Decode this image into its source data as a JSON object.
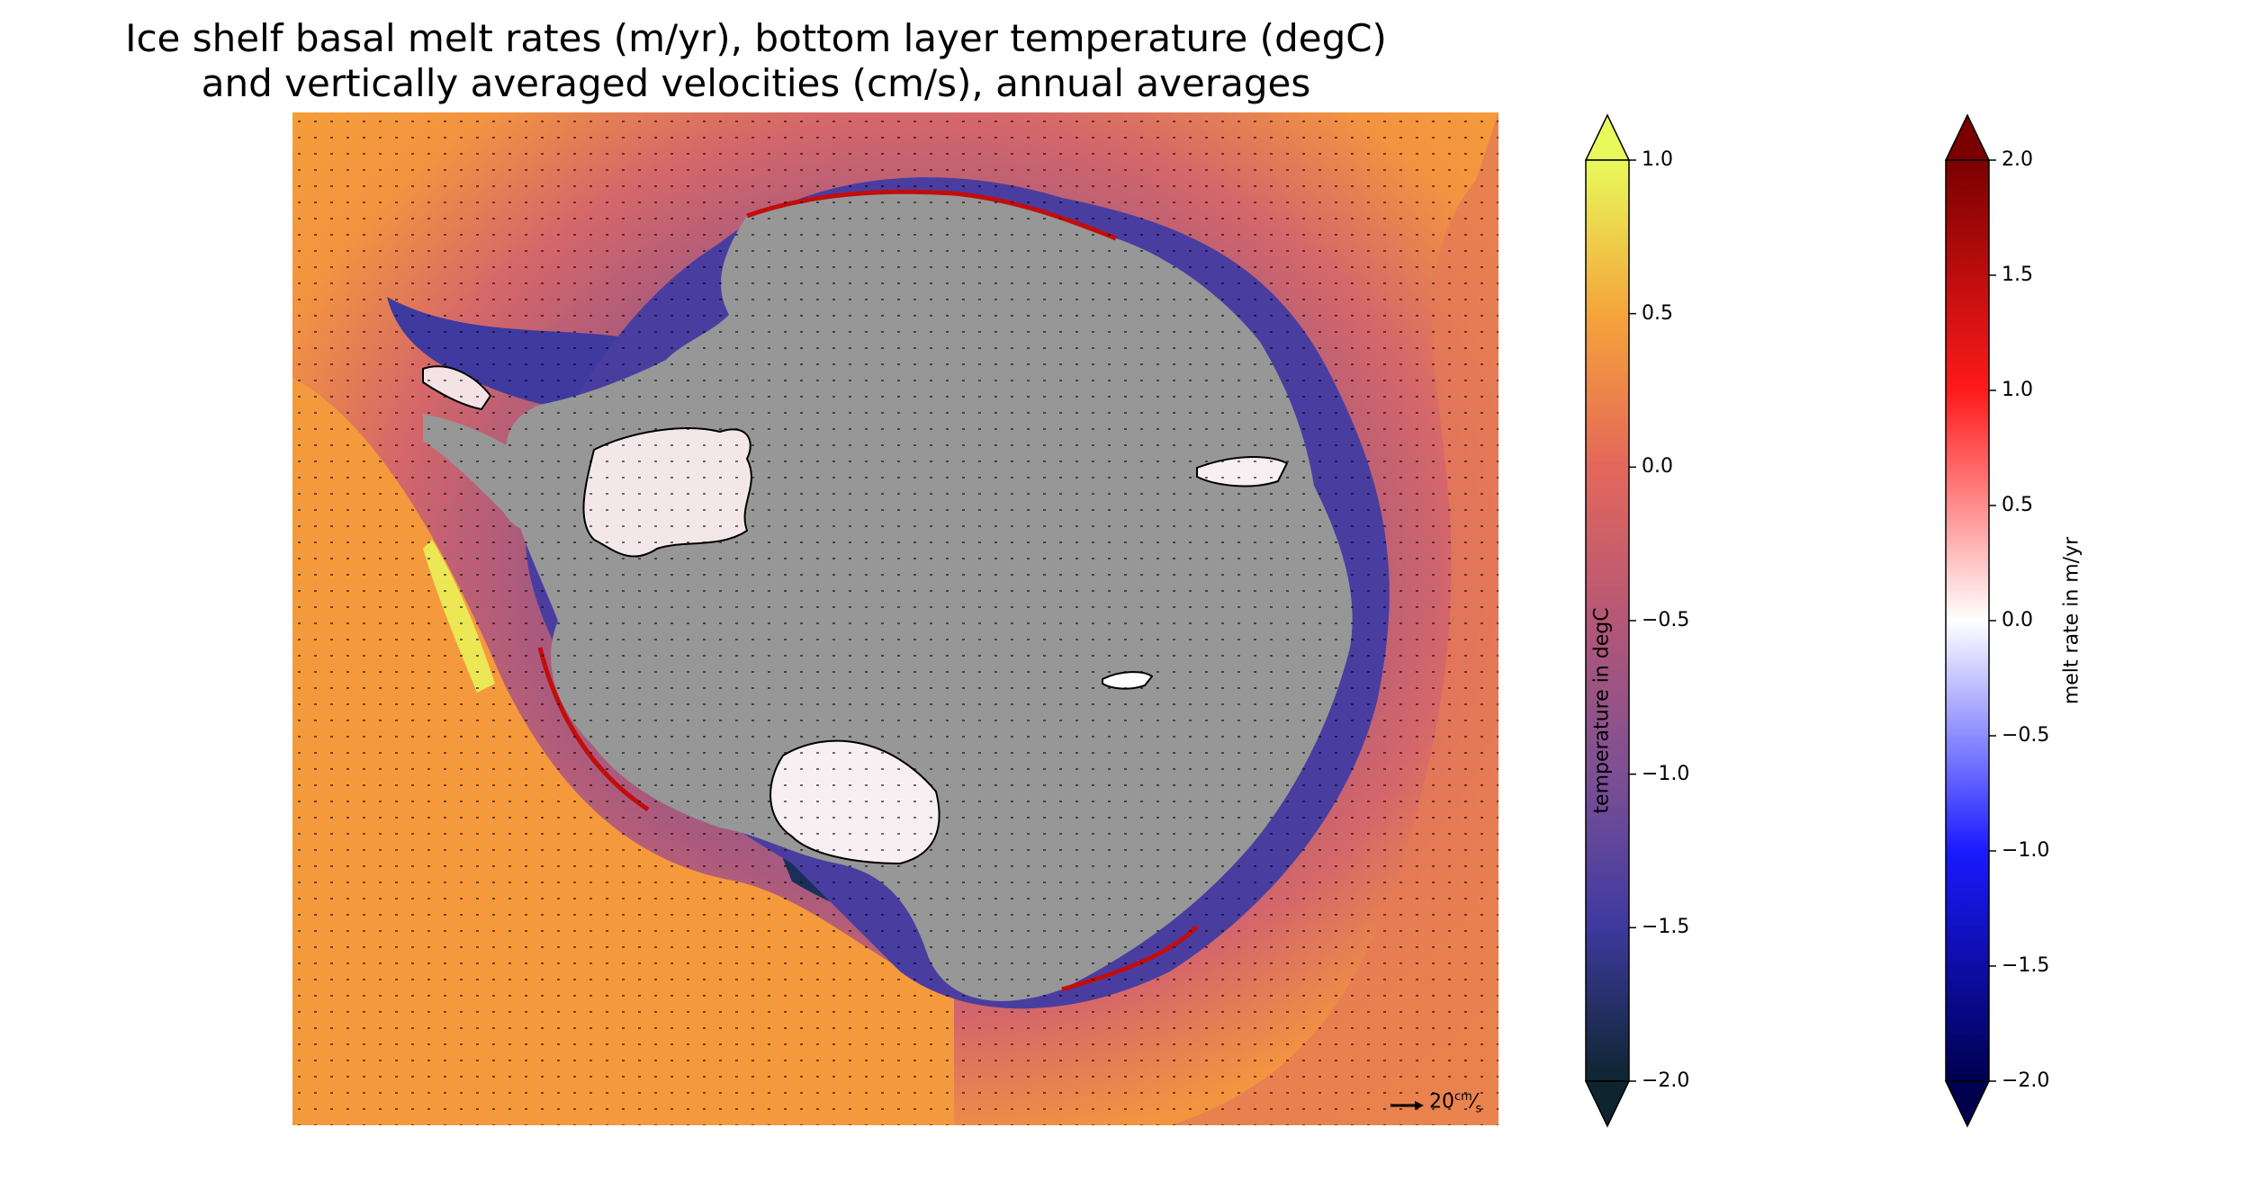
{
  "title": {
    "line1": "Ice shelf basal melt rates (m/yr), bottom layer temperature (degC)",
    "line2": "and vertically averaged velocities (cm/s), annual averages"
  },
  "map": {
    "land_color": "#979797",
    "ocean_warm_color": "#f5973b",
    "quiver_key": {
      "value": "20",
      "unit_num": "cm",
      "unit_den": "s"
    }
  },
  "chart_data": [
    {
      "type": "heatmap",
      "name": "temperature",
      "title": "Ice shelf basal melt rates (m/yr), bottom layer temperature (degC) and vertically averaged velocities (cm/s), annual averages",
      "colorbar_label": "temperature in degC",
      "vmin": -2.0,
      "vmax": 1.0,
      "extend": "both",
      "ticks": [
        1.0,
        0.5,
        0.0,
        -0.5,
        -1.0,
        -1.5,
        -2.0
      ],
      "tick_labels": [
        "1.0",
        "0.5",
        "0.0",
        "−0.5",
        "−1.0",
        "−1.5",
        "−2.0"
      ],
      "colormap_stops": [
        {
          "value": 1.0,
          "color": "#e8fa5b"
        },
        {
          "value": 0.5,
          "color": "#f5a33a"
        },
        {
          "value": 0.0,
          "color": "#e4685a"
        },
        {
          "value": -0.5,
          "color": "#b55776"
        },
        {
          "value": -1.0,
          "color": "#7b4f95"
        },
        {
          "value": -1.5,
          "color": "#3e3aa0"
        },
        {
          "value": -2.0,
          "color": "#0e2530"
        }
      ]
    },
    {
      "type": "heatmap",
      "name": "melt_rate",
      "colorbar_label": "melt rate in m/yr",
      "vmin": -2.0,
      "vmax": 2.0,
      "extend": "both",
      "ticks": [
        2.0,
        1.5,
        1.0,
        0.5,
        0.0,
        -0.5,
        -1.0,
        -1.5,
        -2.0
      ],
      "tick_labels": [
        "2.0",
        "1.5",
        "1.0",
        "0.5",
        "0.0",
        "−0.5",
        "−1.0",
        "−1.5",
        "−2.0"
      ],
      "colormap_stops": [
        {
          "value": 2.0,
          "color": "#7a0000"
        },
        {
          "value": 1.0,
          "color": "#ff1a1a"
        },
        {
          "value": 0.0,
          "color": "#ffffff"
        },
        {
          "value": -1.0,
          "color": "#1a1aff"
        },
        {
          "value": -2.0,
          "color": "#00004f"
        }
      ]
    }
  ]
}
